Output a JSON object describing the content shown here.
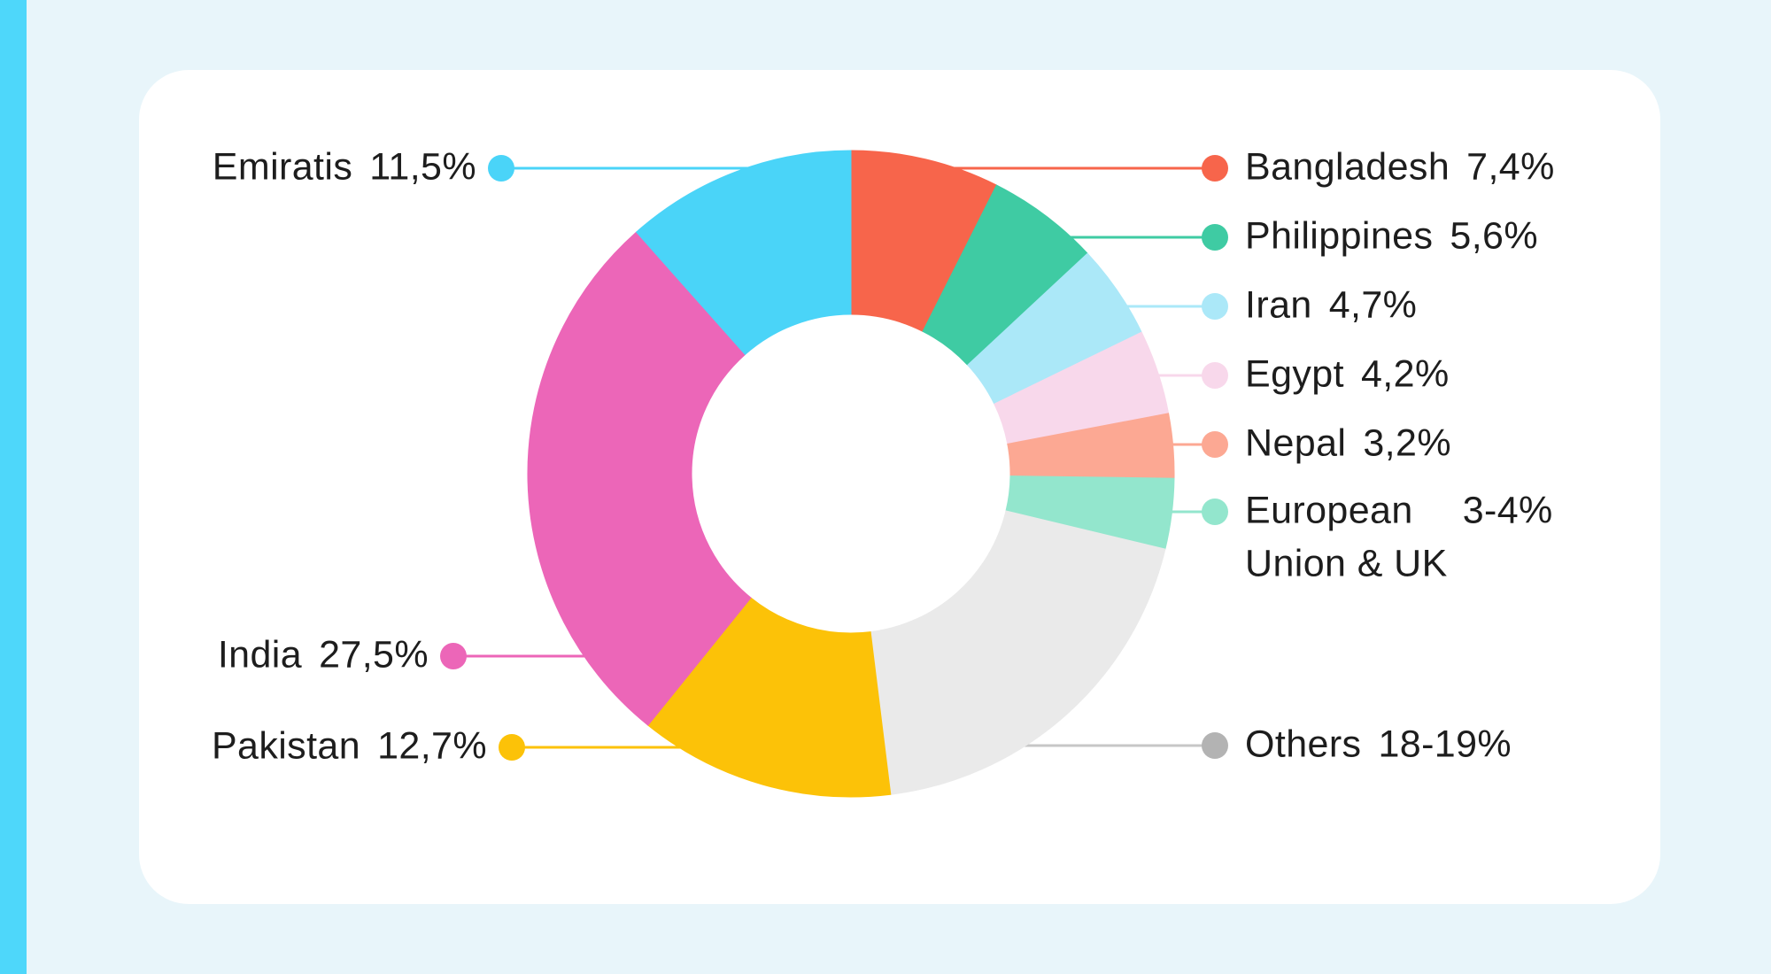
{
  "theme": {
    "page_background": "#E8F5FA",
    "accent_stripe_color": "#4ED7FA",
    "card_background": "#FFFFFF",
    "text_color": "#1D1D1D"
  },
  "chart_data": {
    "type": "pie",
    "subtype": "donut",
    "title": "",
    "unit": "%",
    "order": "clockwise-from-top",
    "legend_position": "callout-labels-both-sides",
    "items": [
      {
        "label": "Bangladesh",
        "display_value": "7,4%",
        "value": 7.4,
        "color": "#F7654B",
        "side": "right"
      },
      {
        "label": "Philippines",
        "display_value": "5,6%",
        "value": 5.6,
        "color": "#3FCBA3",
        "side": "right"
      },
      {
        "label": "Iran",
        "display_value": "4,7%",
        "value": 4.7,
        "color": "#ABE8F8",
        "side": "right"
      },
      {
        "label": "Egypt",
        "display_value": "4,2%",
        "value": 4.2,
        "color": "#F8D8EB",
        "side": "right"
      },
      {
        "label": "Nepal",
        "display_value": "3,2%",
        "value": 3.2,
        "color": "#FCA893",
        "side": "right"
      },
      {
        "label": "European Union & UK",
        "line1": "European",
        "line2": "Union & UK",
        "display_value": "3-4%",
        "value": 3.5,
        "color": "#93E6CD",
        "side": "right"
      },
      {
        "label": "Others",
        "display_value": "18-19%",
        "value": 19.2,
        "color": "#EAEAEA",
        "dot_color": "#B3B3B3",
        "line_color": "#C7C7C7",
        "side": "right"
      },
      {
        "label": "Pakistan",
        "display_value": "12,7%",
        "value": 12.7,
        "color": "#FCC208",
        "side": "left"
      },
      {
        "label": "India",
        "display_value": "27,5%",
        "value": 27.5,
        "color": "#EC66B8",
        "side": "left"
      },
      {
        "label": "Emiratis",
        "display_value": "11,5%",
        "value": 11.5,
        "color": "#4AD4F8",
        "side": "left"
      }
    ]
  }
}
